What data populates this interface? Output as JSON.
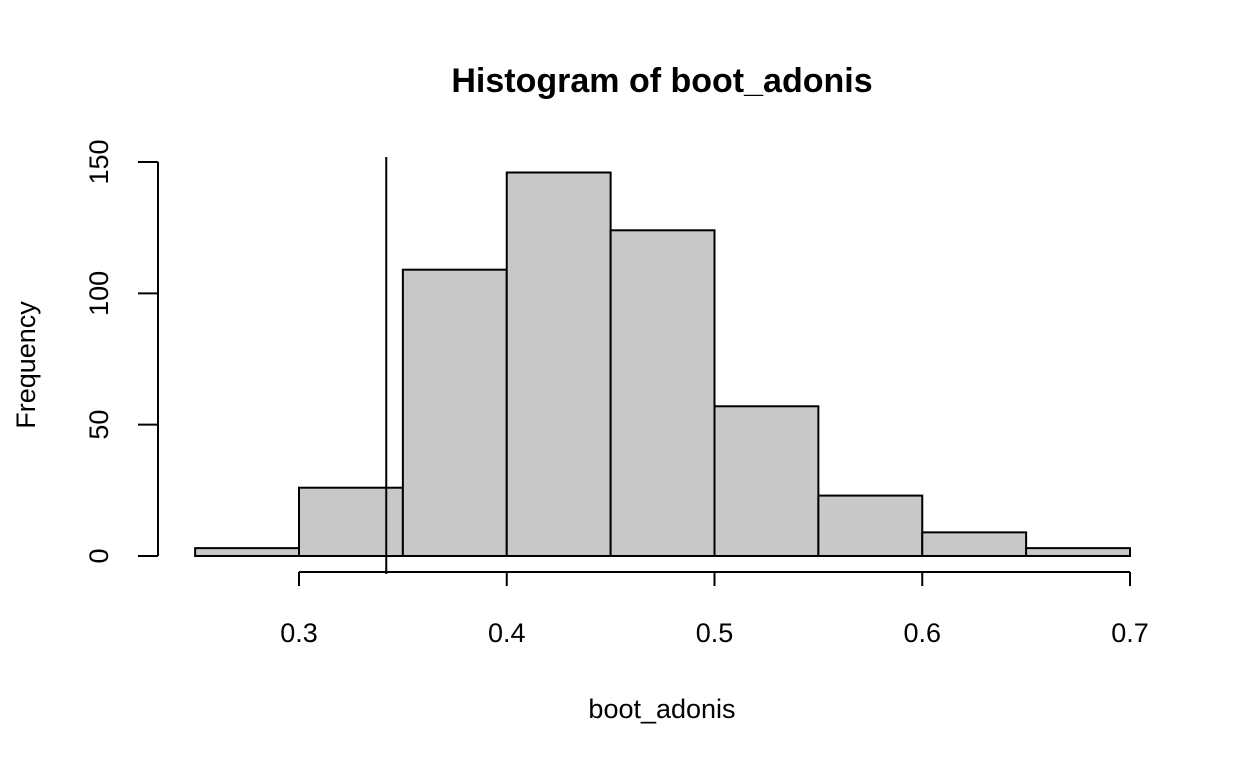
{
  "chart_data": {
    "type": "bar",
    "title": "Histogram of boot_adonis",
    "xlabel": "boot_adonis",
    "ylabel": "Frequency",
    "bins": [
      {
        "x0": 0.25,
        "x1": 0.3,
        "count": 3
      },
      {
        "x0": 0.3,
        "x1": 0.35,
        "count": 26
      },
      {
        "x0": 0.35,
        "x1": 0.4,
        "count": 109
      },
      {
        "x0": 0.4,
        "x1": 0.45,
        "count": 146
      },
      {
        "x0": 0.45,
        "x1": 0.5,
        "count": 124
      },
      {
        "x0": 0.5,
        "x1": 0.55,
        "count": 57
      },
      {
        "x0": 0.55,
        "x1": 0.6,
        "count": 23
      },
      {
        "x0": 0.6,
        "x1": 0.65,
        "count": 9
      },
      {
        "x0": 0.65,
        "x1": 0.7,
        "count": 3
      }
    ],
    "xlim": [
      0.25,
      0.7
    ],
    "ylim": [
      0,
      150
    ],
    "x_ticks": [
      0.3,
      0.4,
      0.5,
      0.6,
      0.7
    ],
    "x_tick_labels": [
      "0.3",
      "0.4",
      "0.5",
      "0.6",
      "0.7"
    ],
    "y_ticks": [
      0,
      50,
      100,
      150
    ],
    "y_tick_labels": [
      "0",
      "50",
      "100",
      "150"
    ],
    "reference_line_x": 0.342,
    "bar_color": "#c8c8c8",
    "grid": false,
    "legend": "none"
  }
}
